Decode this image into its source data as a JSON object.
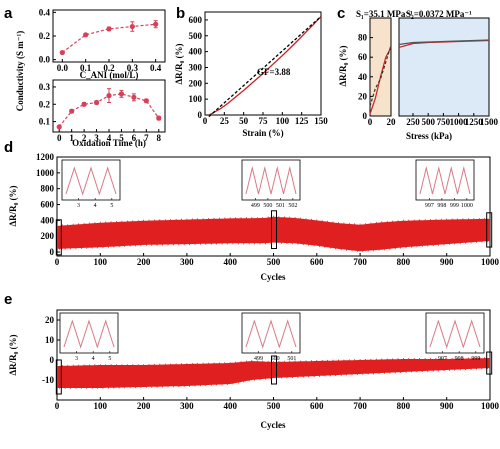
{
  "panels": {
    "a": "a",
    "b": "b",
    "c": "c",
    "d": "d",
    "e": "e"
  },
  "chart_data": [
    {
      "id": "a_top",
      "type": "scatter",
      "panel": "a",
      "ylabel": "Conductivity (S m⁻¹)",
      "xlabel": "C_ANI (mol/L)",
      "xlim": [
        -0.04,
        0.44
      ],
      "ylim": [
        -0.02,
        0.42
      ],
      "xticks": [
        "0.0",
        "0.1",
        "0.2",
        "0.3",
        "0.4"
      ],
      "xtick_values": [
        0,
        0.1,
        0.2,
        0.3,
        0.4
      ],
      "yticks": [
        "0.0",
        "0.2",
        "0.4"
      ],
      "ytick_values": [
        0,
        0.2,
        0.4
      ],
      "series": [
        {
          "x": [
            0,
            0.1,
            0.2,
            0.3,
            0.4
          ],
          "y": [
            0.06,
            0.21,
            0.26,
            0.28,
            0.3
          ],
          "err": [
            0.01,
            0.01,
            0.015,
            0.04,
            0.03
          ]
        }
      ],
      "color": "#d6405a"
    },
    {
      "id": "a_bottom",
      "type": "scatter",
      "panel": "a",
      "ylabel": "Conductivity (S m⁻¹)",
      "xlabel": "Oxidation Time (h)",
      "xlim": [
        -0.5,
        8.5
      ],
      "ylim": [
        0.04,
        0.34
      ],
      "xticks": [
        "0",
        "1",
        "2",
        "3",
        "4",
        "5",
        "6",
        "7",
        "8"
      ],
      "xtick_values": [
        0,
        1,
        2,
        3,
        4,
        5,
        6,
        7,
        8
      ],
      "yticks": [
        "0.1",
        "0.2",
        "0.3"
      ],
      "ytick_values": [
        0.1,
        0.2,
        0.3
      ],
      "series": [
        {
          "x": [
            0,
            1,
            2,
            3,
            4,
            5,
            6,
            7,
            8
          ],
          "y": [
            0.07,
            0.16,
            0.2,
            0.21,
            0.25,
            0.26,
            0.24,
            0.22,
            0.12
          ],
          "err": [
            0.005,
            0.01,
            0.01,
            0.01,
            0.04,
            0.02,
            0.02,
            0.01,
            0.01
          ]
        }
      ],
      "color": "#d6405a"
    },
    {
      "id": "b",
      "type": "line",
      "panel": "b",
      "xlabel": "Strain (%)",
      "ylabel": "ΔR/R₀ (%)",
      "xlim": [
        0,
        150
      ],
      "ylim": [
        0,
        650
      ],
      "xticks": [
        "0",
        "25",
        "50",
        "75",
        "100",
        "125",
        "150"
      ],
      "xtick_values": [
        0,
        25,
        50,
        75,
        100,
        125,
        150
      ],
      "yticks": [
        "0",
        "100",
        "200",
        "300",
        "400",
        "500",
        "600"
      ],
      "ytick_values": [
        0,
        100,
        200,
        300,
        400,
        500,
        600
      ],
      "annotation": "GF=3.88",
      "series": [
        {
          "role": "measured",
          "color": "#cc2222",
          "x": [
            5,
            10,
            20,
            30,
            40,
            50,
            60,
            75,
            90,
            100,
            110,
            120,
            130,
            140,
            150
          ],
          "y": [
            0,
            12,
            40,
            75,
            115,
            155,
            198,
            262,
            330,
            375,
            422,
            470,
            520,
            570,
            622
          ]
        },
        {
          "role": "fit",
          "color": "#000000",
          "dash": true,
          "x": [
            5,
            150
          ],
          "y": [
            -10,
            622
          ]
        }
      ]
    },
    {
      "id": "c",
      "type": "line",
      "panel": "c",
      "xlabel": "Stress (kPa)",
      "ylabel": "ΔR/R₀ (%)",
      "xlim": [
        0,
        1500
      ],
      "ylim": [
        0,
        100
      ],
      "xticks": [
        "0",
        "20",
        "250",
        "500",
        "750",
        "1000",
        "1250",
        "1500"
      ],
      "yticks": [
        "0",
        "20",
        "40",
        "60",
        "80"
      ],
      "ytick_values": [
        0,
        20,
        40,
        60,
        80
      ],
      "annotations": [
        "S₁=35.1 MPa⁻¹",
        "S₂=0.0372 MPa⁻¹"
      ],
      "regions": [
        {
          "name": "low-stress",
          "from_kPa": 0,
          "to_kPa": 20,
          "color": "#f7e2cc"
        },
        {
          "name": "high-stress",
          "from_kPa": 20,
          "to_kPa": 1500,
          "color": "#dceaf7"
        }
      ],
      "series": [
        {
          "color": "#cc2222",
          "x": [
            0,
            5,
            10,
            15,
            20
          ],
          "y": [
            2,
            18,
            40,
            60,
            70
          ]
        },
        {
          "color": "#333333",
          "dash": true,
          "x": [
            0,
            5,
            10,
            15,
            20
          ],
          "y": [
            10,
            28,
            38,
            55,
            72
          ]
        },
        {
          "color": "#cc2222",
          "x": [
            20,
            250,
            500,
            750,
            1000,
            1250,
            1500
          ],
          "y": [
            70,
            74,
            75,
            75.5,
            76,
            76.5,
            77
          ]
        },
        {
          "color": "#555555",
          "x": [
            20,
            250,
            500,
            750,
            1000,
            1250,
            1500
          ],
          "y": [
            73,
            75,
            75.5,
            76,
            76.5,
            77,
            77.5
          ]
        }
      ]
    },
    {
      "id": "d",
      "type": "area",
      "panel": "d",
      "xlabel": "Cycles",
      "ylabel": "ΔR/R₀ (%)",
      "xlim": [
        0,
        1000
      ],
      "ylim": [
        -50,
        1200
      ],
      "xticks": [
        "0",
        "100",
        "200",
        "300",
        "400",
        "500",
        "600",
        "700",
        "800",
        "900",
        "1000"
      ],
      "xtick_values": [
        0,
        100,
        200,
        300,
        400,
        500,
        600,
        700,
        800,
        900,
        1000
      ],
      "yticks": [
        "0",
        "200",
        "400",
        "600",
        "800",
        "1000",
        "1200"
      ],
      "ytick_values": [
        0,
        200,
        400,
        600,
        800,
        1000,
        1200
      ],
      "color": "#e02020",
      "envelope": {
        "cycles": [
          0,
          100,
          200,
          300,
          400,
          480,
          500,
          550,
          600,
          650,
          700,
          750,
          800,
          900,
          1000
        ],
        "upper": [
          330,
          370,
          395,
          410,
          425,
          430,
          445,
          430,
          400,
          365,
          345,
          375,
          395,
          410,
          420
        ],
        "lower": [
          40,
          60,
          90,
          100,
          110,
          110,
          120,
          110,
          80,
          40,
          10,
          30,
          60,
          100,
          140
        ]
      },
      "insets": [
        {
          "ticks": [
            "3",
            "4",
            "5"
          ]
        },
        {
          "ticks": [
            "499",
            "500",
            "501",
            "502"
          ]
        },
        {
          "ticks": [
            "997",
            "998",
            "999",
            "1000"
          ]
        }
      ],
      "marked_cycles": [
        3,
        500,
        997
      ]
    },
    {
      "id": "e",
      "type": "area",
      "panel": "e",
      "xlabel": "Cycles",
      "ylabel": "ΔR/R₀ (%)",
      "xlim": [
        0,
        1000
      ],
      "ylim": [
        -20,
        25
      ],
      "xticks": [
        "0",
        "100",
        "200",
        "300",
        "400",
        "500",
        "600",
        "700",
        "800",
        "900",
        "1000"
      ],
      "xtick_values": [
        0,
        100,
        200,
        300,
        400,
        500,
        600,
        700,
        800,
        900,
        1000
      ],
      "yticks": [
        "-10",
        "0",
        "10",
        "20"
      ],
      "ytick_values": [
        -10,
        0,
        10,
        20
      ],
      "color": "#e02020",
      "envelope": {
        "cycles": [
          0,
          100,
          200,
          300,
          400,
          450,
          500,
          600,
          700,
          800,
          900,
          1000
        ],
        "upper": [
          -3,
          -2.5,
          -2.5,
          -2,
          -1.5,
          -0.5,
          -1,
          -0.5,
          0,
          0.5,
          0.5,
          1
        ],
        "lower": [
          -14,
          -14,
          -13.5,
          -13,
          -12,
          -10,
          -9,
          -8,
          -7,
          -6,
          -5,
          -4
        ]
      },
      "insets": [
        {
          "ticks": [
            "3",
            "4",
            "5"
          ]
        },
        {
          "ticks": [
            "499",
            "500",
            "501"
          ]
        },
        {
          "ticks": [
            "997",
            "998",
            "999"
          ]
        }
      ],
      "marked_cycles": [
        3,
        500,
        997
      ]
    }
  ]
}
